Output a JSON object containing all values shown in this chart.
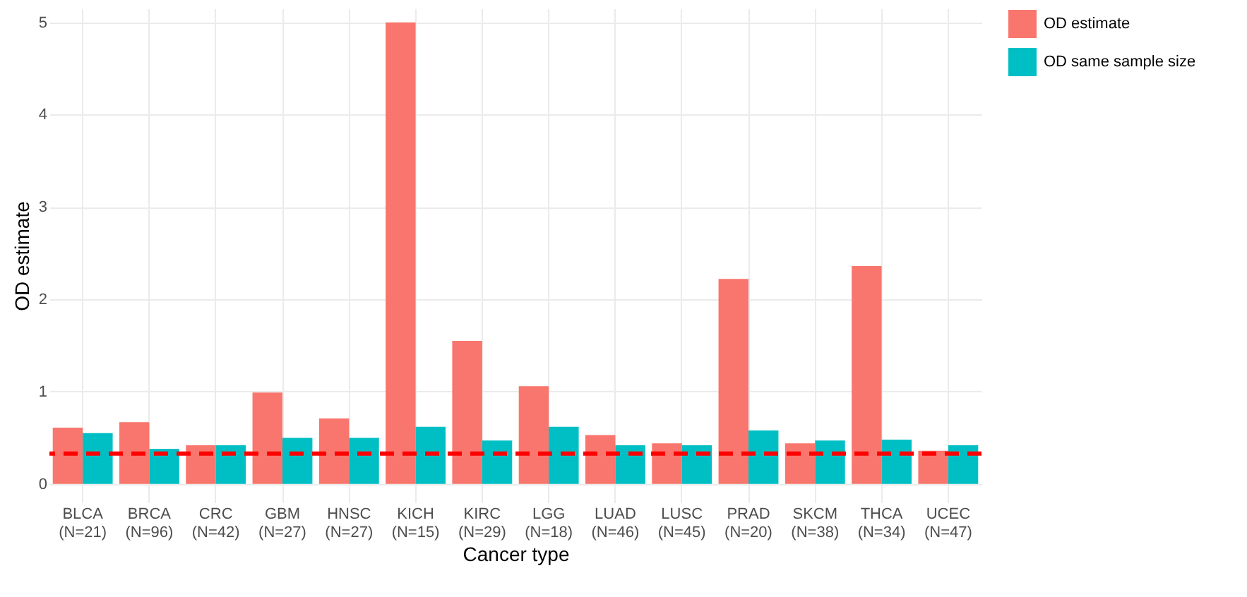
{
  "chart_data": {
    "type": "bar",
    "xlabel": "Cancer type",
    "ylabel": "OD estimate",
    "categories": [
      "BLCA\n(N=21)",
      "BRCA\n(N=96)",
      "CRC\n(N=42)",
      "GBM\n(N=27)",
      "HNSC\n(N=27)",
      "KICH\n(N=15)",
      "KIRC\n(N=29)",
      "LGG\n(N=18)",
      "LUAD\n(N=46)",
      "LUSC\n(N=45)",
      "PRAD\n(N=20)",
      "SKCM\n(N=38)",
      "THCA\n(N=34)",
      "UCEC\n(N=47)"
    ],
    "series": [
      {
        "name": "OD estimate",
        "color": "#f8766d",
        "values": [
          0.61,
          0.67,
          0.42,
          0.99,
          0.71,
          5.0,
          1.55,
          1.06,
          0.53,
          0.44,
          2.22,
          0.44,
          2.36,
          0.36
        ]
      },
      {
        "name": "OD same sample size",
        "color": "#00bfc4",
        "values": [
          0.55,
          0.38,
          0.42,
          0.5,
          0.5,
          0.62,
          0.47,
          0.62,
          0.42,
          0.42,
          0.58,
          0.47,
          0.48,
          0.42
        ]
      }
    ],
    "ylim": [
      -0.2,
      5.15
    ],
    "yticks": [
      0,
      1,
      2,
      3,
      4,
      5
    ],
    "grid": true,
    "legend": "right",
    "ref_lines": [
      {
        "axis": "y",
        "value": 0.33,
        "color": "#ff0000",
        "line_style": "dashed"
      }
    ]
  }
}
